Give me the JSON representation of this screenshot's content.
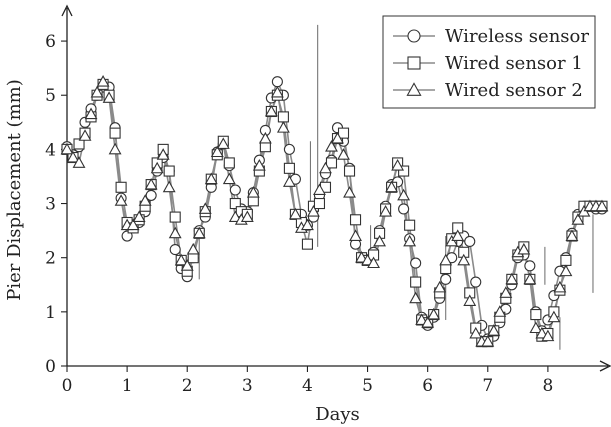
{
  "chart_data": {
    "type": "line",
    "title": "",
    "xlabel": "Days",
    "ylabel": "Pier Displacement (mm)",
    "xlim": [
      0,
      9
    ],
    "ylim": [
      0,
      6.5
    ],
    "x_ticks": [
      "0",
      "1",
      "2",
      "3",
      "4",
      "5",
      "6",
      "7",
      "8"
    ],
    "y_ticks": [
      "0",
      "1",
      "2",
      "3",
      "4",
      "5",
      "6"
    ],
    "legend_position": "top-right",
    "series_line_color": "#8a8a8a",
    "marker_stroke_color": "#333333",
    "series": [
      {
        "name": "Wireless sensor",
        "marker": "circle",
        "x": [
          0,
          0.1,
          0.2,
          0.3,
          0.4,
          0.5,
          0.6,
          0.7,
          0.8,
          0.9,
          1.0,
          1.1,
          1.2,
          1.3,
          1.4,
          1.5,
          1.6,
          1.7,
          1.8,
          1.9,
          2.0,
          2.1,
          2.2,
          2.3,
          2.4,
          2.5,
          2.6,
          2.7,
          2.8,
          2.9,
          3.0,
          3.1,
          3.2,
          3.3,
          3.4,
          3.5,
          3.6,
          3.7,
          3.8,
          3.9,
          4.0,
          4.1,
          4.2,
          4.3,
          4.4,
          4.5,
          4.6,
          4.7,
          4.8,
          4.9,
          5.0,
          5.1,
          5.2,
          5.3,
          5.4,
          5.5,
          5.6,
          5.7,
          5.8,
          5.9,
          6.0,
          6.1,
          6.2,
          6.3,
          6.4,
          6.5,
          6.6,
          6.7,
          6.8,
          6.9,
          7.0,
          7.1,
          7.2,
          7.3,
          7.4,
          7.5,
          7.6,
          7.7,
          7.8,
          7.9,
          8.0,
          8.1,
          8.2,
          8.3,
          8.4,
          8.5,
          8.6,
          8.7,
          8.8,
          8.9
        ],
        "y": [
          4.05,
          3.9,
          4.05,
          4.5,
          4.75,
          5.0,
          5.15,
          5.15,
          4.4,
          3.1,
          2.4,
          2.55,
          2.65,
          2.85,
          3.15,
          3.6,
          3.85,
          3.6,
          2.15,
          1.8,
          1.65,
          2.0,
          2.5,
          2.75,
          3.3,
          3.95,
          4.1,
          3.7,
          3.25,
          2.9,
          2.85,
          3.2,
          3.8,
          4.35,
          4.95,
          5.25,
          5.0,
          4.0,
          3.45,
          2.8,
          2.6,
          2.75,
          3.15,
          3.55,
          3.8,
          4.4,
          4.15,
          3.65,
          2.25,
          2.0,
          1.95,
          2.1,
          2.5,
          2.95,
          3.35,
          3.4,
          2.9,
          2.35,
          1.9,
          0.9,
          0.75,
          0.9,
          1.25,
          1.6,
          2.0,
          2.3,
          2.4,
          2.3,
          1.55,
          0.75,
          0.5,
          0.55,
          0.8,
          1.05,
          1.5,
          2.0,
          2.05,
          1.85,
          1.0,
          0.65,
          0.85,
          1.3,
          1.75,
          2.0,
          2.45,
          2.8,
          2.95,
          2.95,
          2.9,
          2.9
        ]
      },
      {
        "name": "Wired sensor 1",
        "marker": "square",
        "x": [
          0,
          0.1,
          0.2,
          0.3,
          0.4,
          0.5,
          0.6,
          0.7,
          0.8,
          0.9,
          1.0,
          1.1,
          1.2,
          1.3,
          1.4,
          1.5,
          1.6,
          1.7,
          1.8,
          1.9,
          2.0,
          2.1,
          2.2,
          2.3,
          2.4,
          2.5,
          2.6,
          2.7,
          2.8,
          2.9,
          3.0,
          3.1,
          3.2,
          3.3,
          3.4,
          3.5,
          3.6,
          3.7,
          3.8,
          3.9,
          4.0,
          4.1,
          4.2,
          4.3,
          4.4,
          4.5,
          4.6,
          4.7,
          4.8,
          4.9,
          5.0,
          5.1,
          5.2,
          5.3,
          5.4,
          5.5,
          5.6,
          5.7,
          5.8,
          5.9,
          6.0,
          6.1,
          6.2,
          6.3,
          6.4,
          6.5,
          6.6,
          6.7,
          6.8,
          6.9,
          7.0,
          7.1,
          7.2,
          7.3,
          7.4,
          7.5,
          7.6,
          7.7,
          7.8,
          7.9,
          8.0,
          8.1,
          8.2,
          8.3,
          8.4,
          8.5,
          8.6,
          8.7,
          8.8,
          8.9
        ],
        "y": [
          4.0,
          3.85,
          4.1,
          4.3,
          4.6,
          5.0,
          5.2,
          5.0,
          4.3,
          3.3,
          2.65,
          2.55,
          2.7,
          2.95,
          3.35,
          3.75,
          4.0,
          3.6,
          2.75,
          1.95,
          1.75,
          2.0,
          2.45,
          2.85,
          3.45,
          3.9,
          4.15,
          3.75,
          3.0,
          2.85,
          2.8,
          3.05,
          3.6,
          4.05,
          4.7,
          5.0,
          4.6,
          3.65,
          2.8,
          2.65,
          2.25,
          2.95,
          3.0,
          3.3,
          3.75,
          4.2,
          4.3,
          3.6,
          2.7,
          2.0,
          1.95,
          2.05,
          2.45,
          2.9,
          3.3,
          3.75,
          3.6,
          2.6,
          1.55,
          0.85,
          0.8,
          0.95,
          1.35,
          1.8,
          2.35,
          2.55,
          2.1,
          1.35,
          0.7,
          0.45,
          0.45,
          0.65,
          0.9,
          1.25,
          1.6,
          2.05,
          2.2,
          1.6,
          0.95,
          0.55,
          0.6,
          1.0,
          1.4,
          1.95,
          2.4,
          2.75,
          2.95,
          2.95,
          2.95,
          2.95
        ]
      },
      {
        "name": "Wired sensor 2",
        "marker": "triangle",
        "x": [
          0,
          0.1,
          0.2,
          0.3,
          0.4,
          0.5,
          0.6,
          0.7,
          0.8,
          0.9,
          1.0,
          1.1,
          1.2,
          1.3,
          1.4,
          1.5,
          1.6,
          1.7,
          1.8,
          1.9,
          2.0,
          2.1,
          2.2,
          2.3,
          2.4,
          2.5,
          2.6,
          2.7,
          2.8,
          2.9,
          3.0,
          3.1,
          3.2,
          3.3,
          3.4,
          3.5,
          3.6,
          3.7,
          3.8,
          3.9,
          4.0,
          4.1,
          4.2,
          4.3,
          4.4,
          4.5,
          4.6,
          4.7,
          4.8,
          4.9,
          5.0,
          5.1,
          5.2,
          5.3,
          5.4,
          5.5,
          5.6,
          5.7,
          5.8,
          5.9,
          6.0,
          6.1,
          6.2,
          6.3,
          6.4,
          6.5,
          6.6,
          6.7,
          6.8,
          6.9,
          7.0,
          7.1,
          7.2,
          7.3,
          7.4,
          7.5,
          7.6,
          7.7,
          7.8,
          7.9,
          8.0,
          8.1,
          8.2,
          8.3,
          8.4,
          8.5,
          8.6,
          8.7,
          8.8,
          8.9
        ],
        "y": [
          4.0,
          3.85,
          3.75,
          4.25,
          4.65,
          5.05,
          5.25,
          4.95,
          4.0,
          3.05,
          2.6,
          2.6,
          2.75,
          3.05,
          3.35,
          3.65,
          3.9,
          3.3,
          2.45,
          1.95,
          1.85,
          2.15,
          2.45,
          2.9,
          3.45,
          3.95,
          4.1,
          3.45,
          2.75,
          2.7,
          2.75,
          3.2,
          3.7,
          4.2,
          4.7,
          5.05,
          4.4,
          3.4,
          2.8,
          2.55,
          2.6,
          2.85,
          3.25,
          3.65,
          4.05,
          4.2,
          3.9,
          3.2,
          2.4,
          2.0,
          1.95,
          1.9,
          2.3,
          2.85,
          3.3,
          3.7,
          3.15,
          2.3,
          1.25,
          0.85,
          0.8,
          0.95,
          1.45,
          1.95,
          2.3,
          2.4,
          1.95,
          1.2,
          0.6,
          0.45,
          0.45,
          0.65,
          1.0,
          1.35,
          1.6,
          2.1,
          2.15,
          1.6,
          0.7,
          0.6,
          0.55,
          0.9,
          1.45,
          1.75,
          2.4,
          2.7,
          2.85,
          2.95,
          2.95,
          2.95
        ]
      }
    ]
  }
}
